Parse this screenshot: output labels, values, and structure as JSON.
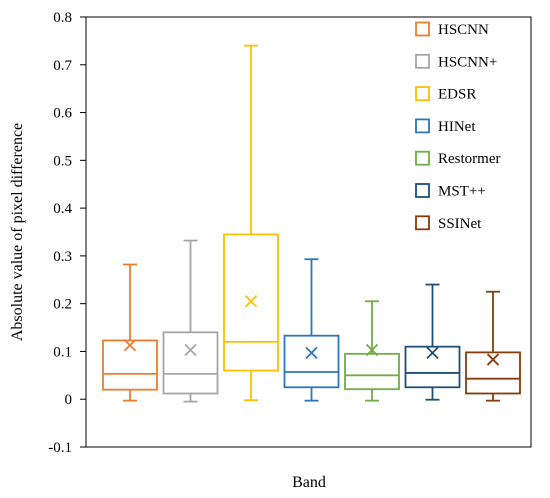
{
  "chart_data": {
    "type": "box",
    "title": "",
    "xlabel": "Band",
    "ylabel": "Absolute value of pixel difference",
    "ylim": [
      -0.1,
      0.8
    ],
    "yticks": [
      -0.1,
      0,
      0.1,
      0.2,
      0.3,
      0.4,
      0.5,
      0.6,
      0.7,
      0.8
    ],
    "ytick_labels": [
      "-0.1",
      "0",
      "0.1",
      "0.2",
      "0.3",
      "0.4",
      "0.5",
      "0.6",
      "0.7",
      "0.8"
    ],
    "grid": false,
    "legend_position": "top-right",
    "series": [
      {
        "name": "HSCNN",
        "color": "#ED7D31",
        "whisker_low": -0.003,
        "q1": 0.02,
        "median": 0.053,
        "q3": 0.123,
        "whisker_high": 0.282,
        "mean": 0.113
      },
      {
        "name": "HSCNN+",
        "color": "#A5A5A5",
        "whisker_low": -0.005,
        "q1": 0.012,
        "median": 0.053,
        "q3": 0.14,
        "whisker_high": 0.332,
        "mean": 0.103
      },
      {
        "name": "EDSR",
        "color": "#FFC000",
        "whisker_low": -0.002,
        "q1": 0.06,
        "median": 0.12,
        "q3": 0.345,
        "whisker_high": 0.74,
        "mean": 0.205
      },
      {
        "name": "HINet",
        "color": "#2E75B6",
        "whisker_low": -0.003,
        "q1": 0.025,
        "median": 0.057,
        "q3": 0.133,
        "whisker_high": 0.293,
        "mean": 0.097
      },
      {
        "name": "Restormer",
        "color": "#70AD47",
        "whisker_low": -0.003,
        "q1": 0.021,
        "median": 0.05,
        "q3": 0.095,
        "whisker_high": 0.205,
        "mean": 0.103
      },
      {
        "name": "MST++",
        "color": "#1F4E79",
        "whisker_low": -0.001,
        "q1": 0.025,
        "median": 0.055,
        "q3": 0.11,
        "whisker_high": 0.24,
        "mean": 0.097
      },
      {
        "name": "SSINet",
        "color": "#843C0C",
        "whisker_low": -0.003,
        "q1": 0.012,
        "median": 0.043,
        "q3": 0.098,
        "whisker_high": 0.225,
        "mean": 0.083
      }
    ]
  }
}
